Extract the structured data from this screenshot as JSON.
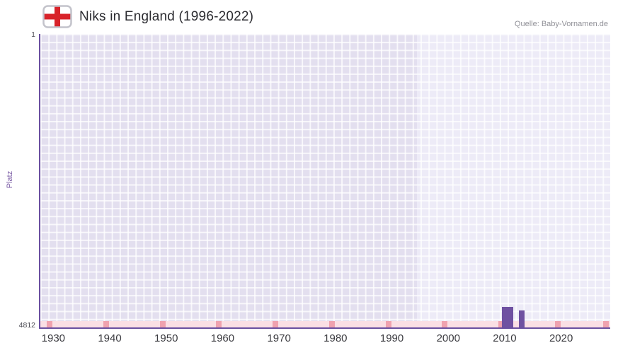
{
  "header": {
    "title": "Niks in England (1996-2022)",
    "source": "Quelle: Baby-Vornamen.de",
    "flag_icon": "england-flag-icon"
  },
  "chart_data": {
    "type": "bar",
    "title": "Niks in England (1996-2022)",
    "xlabel": "",
    "ylabel": "Platz",
    "y_axis": {
      "top_label": "1",
      "bottom_label": "4812",
      "min": 1,
      "max": 4812,
      "inverted": true
    },
    "x_axis": {
      "min": 1927.7,
      "max": 2028.7,
      "ticks": [
        1930,
        1940,
        1950,
        1960,
        1970,
        1980,
        1990,
        2000,
        2010,
        2020
      ]
    },
    "highlight_band": {
      "start": 1994.5,
      "end": 2028.7
    },
    "series": [
      {
        "name": "Platz",
        "points": [
          {
            "year": 2010,
            "rank": 4472
          },
          {
            "year": 2011,
            "rank": 4472
          },
          {
            "year": 2013,
            "rank": 4529
          }
        ]
      }
    ],
    "grid": true,
    "legend": "none",
    "colors": {
      "bar": "#6f51a1",
      "axis": "#6a4fa0",
      "plot_bg": "#e3dfef",
      "band_bg": "#edebf7",
      "grid_line": "#ffffff",
      "strip_bg": "#fadfe4",
      "strip_mark": "#efa2af",
      "flag_cross": "#d8232a",
      "axis_title_text": "#7a5ba5",
      "tick_text": "#3b3b40",
      "source_text": "#909097"
    }
  }
}
